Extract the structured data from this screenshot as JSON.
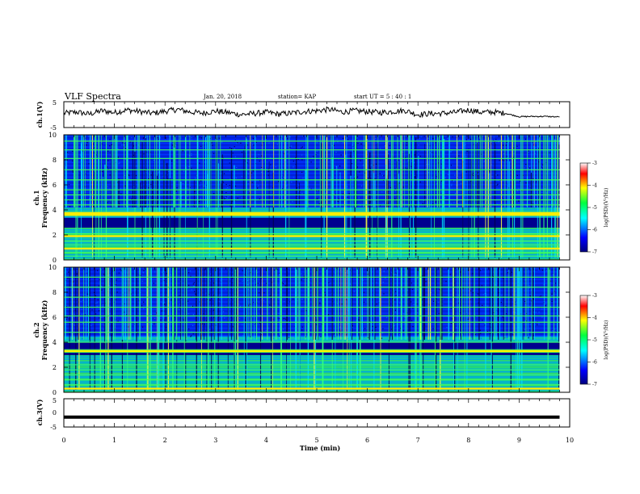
{
  "header": {
    "title": "VLF Spectra",
    "date": "Jan. 20, 2018",
    "station": "station= KAP",
    "start": "start  UT =   5 : 40 : 1"
  },
  "chart_data": [
    {
      "type": "line",
      "panel": "ch1-waveform",
      "ylabel": "ch.1(V)",
      "ylim": [
        -5,
        5
      ],
      "yticks": [
        "5",
        "-5"
      ],
      "x": [
        0,
        0.25,
        0.5,
        0.75,
        1,
        1.25,
        1.5,
        1.75,
        2,
        2.25,
        2.5,
        2.75,
        3,
        3.25,
        3.5,
        3.75,
        4,
        4.25,
        4.5,
        4.75,
        5,
        5.25,
        5.5,
        5.75,
        6,
        6.25,
        6.5,
        6.75,
        7,
        7.25,
        7.5,
        7.75,
        8,
        8.25,
        8.5,
        8.75,
        9,
        9.25,
        9.5,
        9.8
      ],
      "values": [
        0.5,
        1.0,
        0.2,
        1.5,
        0.8,
        1.8,
        1.2,
        0.5,
        1.3,
        2.0,
        1.0,
        0.6,
        1.4,
        0.8,
        0.0,
        0.4,
        0.9,
        0.2,
        0.6,
        1.2,
        1.5,
        2.0,
        1.0,
        1.5,
        1.2,
        0.8,
        1.2,
        1.6,
        0.0,
        0.4,
        0.5,
        0.9,
        1.8,
        0.9,
        1.0,
        0.4,
        -0.8,
        -0.7,
        -0.7,
        -0.9
      ]
    },
    {
      "type": "heatmap",
      "panel": "ch1-spectrogram",
      "ylabel": "ch.1\nFrequency (kHz)",
      "ylim": [
        0,
        10
      ],
      "yticks": [
        "0",
        "2",
        "4",
        "6",
        "8",
        "10"
      ],
      "xlim": [
        0,
        9.8
      ],
      "colorbar": {
        "label": "log(PSD)(V²/Hz)",
        "ticks": [
          "-3",
          "-4",
          "-5",
          "-6",
          "-7"
        ],
        "range": [
          -7,
          -3
        ]
      },
      "bands_khz": [
        0.3,
        0.6,
        0.9,
        1.2,
        1.5,
        1.9,
        2.1,
        3.6,
        3.7,
        3.8,
        4.4,
        4.8,
        5.2,
        5.6,
        6.4,
        7.2,
        8.1,
        8.8,
        9.5
      ],
      "strong_bands_khz": [
        3.6,
        3.75,
        1.9,
        0.9
      ]
    },
    {
      "type": "heatmap",
      "panel": "ch2-spectrogram",
      "ylabel": "ch.2\nFrequency (kHz)",
      "ylim": [
        0,
        10
      ],
      "yticks": [
        "0",
        "2",
        "4",
        "6",
        "8",
        "10"
      ],
      "xlim": [
        0,
        9.8
      ],
      "colorbar": {
        "label": "log(PSD)(V²/Hz)",
        "ticks": [
          "-3",
          "-4",
          "-5",
          "-6",
          "-7"
        ],
        "range": [
          -7,
          -3
        ]
      },
      "bands_khz": [
        0.3,
        0.6,
        1.0,
        1.4,
        1.8,
        2.2,
        3.2,
        3.4,
        4.0,
        4.8,
        5.6,
        6.1,
        6.8,
        7.6,
        8.4,
        9.2
      ],
      "strong_bands_khz": [
        3.3,
        0.3
      ]
    },
    {
      "type": "line",
      "panel": "ch3-waveform",
      "ylabel": "ch.3(V)",
      "ylim": [
        -5,
        5
      ],
      "yticks": [
        "5",
        "0",
        "-5"
      ],
      "x": [
        0,
        9.8
      ],
      "values": [
        -1.5,
        -1.5
      ]
    },
    {
      "type": "axis",
      "xlabel": "Time (min)",
      "xlim": [
        0,
        10
      ],
      "xticks": [
        "0",
        "1",
        "2",
        "3",
        "4",
        "5",
        "6",
        "7",
        "8",
        "9",
        "10"
      ]
    }
  ]
}
